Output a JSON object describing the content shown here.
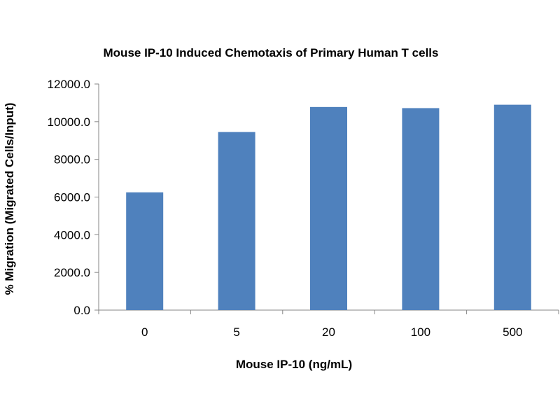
{
  "chart_data": {
    "type": "bar",
    "title": "Mouse IP-10 Induced Chemotaxis of Primary Human T cells",
    "xlabel": "Mouse IP-10 (ng/mL)",
    "ylabel": "% Migration (Migrated Cells/Input)",
    "categories": [
      "0",
      "5",
      "20",
      "100",
      "500"
    ],
    "values": [
      6250,
      9450,
      10780,
      10720,
      10900
    ],
    "ylim": [
      0,
      12000
    ],
    "yticks": [
      0,
      2000,
      4000,
      6000,
      8000,
      10000,
      12000
    ],
    "ytick_labels": [
      "0.0",
      "2000.0",
      "4000.0",
      "6000.0",
      "8000.0",
      "10000.0",
      "12000.0"
    ],
    "grid": false,
    "legend": "none",
    "bar_color": "#4f81bd",
    "axis_color": "#868686"
  }
}
